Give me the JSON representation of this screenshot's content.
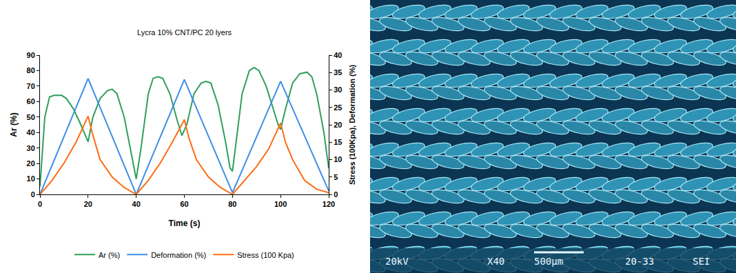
{
  "chart_data": {
    "type": "line",
    "title": "Lycra 10% CNT/PC 20 lyers",
    "x_label": "Time (s)",
    "y_label": "Ar (%)",
    "y2_label": "Stress (100Kpa), Deformation (%)",
    "xlim": [
      0,
      120
    ],
    "xticks": [
      0,
      20,
      40,
      60,
      80,
      100,
      120
    ],
    "ylim": [
      0,
      90
    ],
    "yticks": [
      0,
      10,
      20,
      30,
      40,
      50,
      60,
      70,
      80,
      90
    ],
    "y2lim": [
      0,
      40
    ],
    "y2ticks": [
      0,
      5,
      10,
      15,
      20,
      25,
      30,
      35,
      40
    ],
    "grid": false,
    "legend": "bottom",
    "series": [
      {
        "name": "Ar (%)",
        "color": "#2f9e5b",
        "x": [
          0,
          2,
          4,
          6,
          9,
          11,
          14,
          17,
          20,
          22,
          25,
          28,
          30,
          32,
          35,
          38,
          40,
          42,
          45,
          47,
          49,
          51,
          54,
          57,
          59,
          61,
          64,
          67,
          69,
          71,
          74,
          77,
          79,
          80,
          82,
          84,
          87,
          89,
          91,
          94,
          97,
          99,
          100,
          102,
          105,
          108,
          111,
          113,
          115,
          118,
          120
        ],
        "values": [
          5,
          50,
          63,
          64,
          64,
          62,
          55,
          45,
          34,
          50,
          62,
          67,
          68,
          65,
          50,
          25,
          10,
          30,
          65,
          75,
          76,
          75,
          65,
          48,
          38,
          45,
          65,
          72,
          73,
          72,
          58,
          35,
          17,
          15,
          40,
          65,
          80,
          82,
          80,
          70,
          55,
          45,
          42,
          55,
          72,
          78,
          79,
          76,
          65,
          40,
          17
        ]
      },
      {
        "name": "Deformation (%)",
        "color": "#3d8fe6",
        "axis": "y2",
        "x": [
          0,
          20,
          40,
          60,
          80,
          100,
          120
        ],
        "values": [
          0,
          33.3,
          0,
          33,
          0.5,
          32.5,
          1
        ]
      },
      {
        "name": "Stress (100 Kpa)",
        "color": "#ff6b12",
        "axis": "y2",
        "x": [
          0,
          5,
          10,
          15,
          20,
          22,
          25,
          30,
          35,
          40,
          45,
          50,
          55,
          60,
          62,
          65,
          70,
          75,
          80,
          85,
          90,
          95,
          100,
          102,
          105,
          110,
          115,
          120
        ],
        "values": [
          0,
          4,
          9,
          15,
          22.5,
          17,
          10,
          5,
          2,
          0,
          4,
          9,
          15,
          21.5,
          16,
          10,
          5,
          2,
          0,
          4,
          8,
          13,
          20.5,
          15,
          10,
          4,
          1.5,
          0.5
        ]
      }
    ]
  },
  "micrograph": {
    "voltage": "20kV",
    "magnification": "X40",
    "scale_bar": "500µm",
    "image_number": "20-33",
    "detector": "SEI"
  }
}
